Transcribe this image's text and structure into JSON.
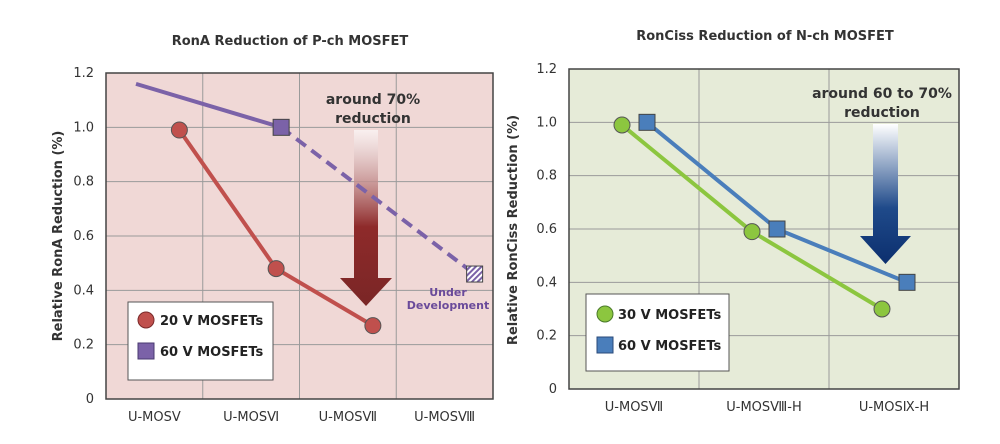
{
  "chart_data": [
    {
      "type": "line",
      "title": "RonA Reduction of P-ch MOSFET",
      "xlabel": "",
      "ylabel": "Relative RonA Reduction (%)",
      "ylim": [
        0,
        1.2
      ],
      "yticks": [
        "0",
        "0.2",
        "0.4",
        "0.6",
        "0.8",
        "1.0",
        "1.2"
      ],
      "categories": [
        "U-MOSⅤ",
        "U-MOSⅥ",
        "U-MOSⅦ",
        "U-MOSⅧ"
      ],
      "grid": true,
      "background": "#f0d8d6",
      "legend_position": "bottom-left",
      "series": [
        {
          "name": "20 V MOSFETs",
          "marker": "circle",
          "color": "#c0504d",
          "values": [
            0.99,
            0.48,
            0.27,
            null
          ]
        },
        {
          "name": "60 V MOSFETs",
          "marker": "square",
          "color": "#7b62a8",
          "line_start_value": 1.16,
          "values": [
            null,
            1.0,
            null,
            0.46
          ],
          "dashed_from": "U-MOSⅥ"
        }
      ],
      "annotations": {
        "arrow_text_1": "around 70%",
        "arrow_text_2": "reduction",
        "under_dev_1": "Under",
        "under_dev_2": "Development"
      }
    },
    {
      "type": "line",
      "title": "RonCiss Reduction of N-ch MOSFET",
      "xlabel": "",
      "ylabel": "Relative RonCiss Reduction (%)",
      "ylim": [
        0,
        1.2
      ],
      "yticks": [
        "0",
        "0.2",
        "0.4",
        "0.6",
        "0.8",
        "1.0",
        "1.2"
      ],
      "categories": [
        "U-MOSⅦ",
        "U-MOSⅧ-H",
        "U-MOSⅨ-H"
      ],
      "grid": true,
      "background": "#e6ebd8",
      "legend_position": "bottom-left",
      "series": [
        {
          "name": "30 V MOSFETs",
          "marker": "circle",
          "color": "#8cc63f",
          "values": [
            0.99,
            0.59,
            0.3
          ]
        },
        {
          "name": "60 V MOSFETs",
          "marker": "square",
          "color": "#4a7ebb",
          "values": [
            1.0,
            0.6,
            0.4
          ]
        }
      ],
      "annotations": {
        "arrow_text_1": "around 60 to 70%",
        "arrow_text_2": "reduction"
      }
    }
  ]
}
